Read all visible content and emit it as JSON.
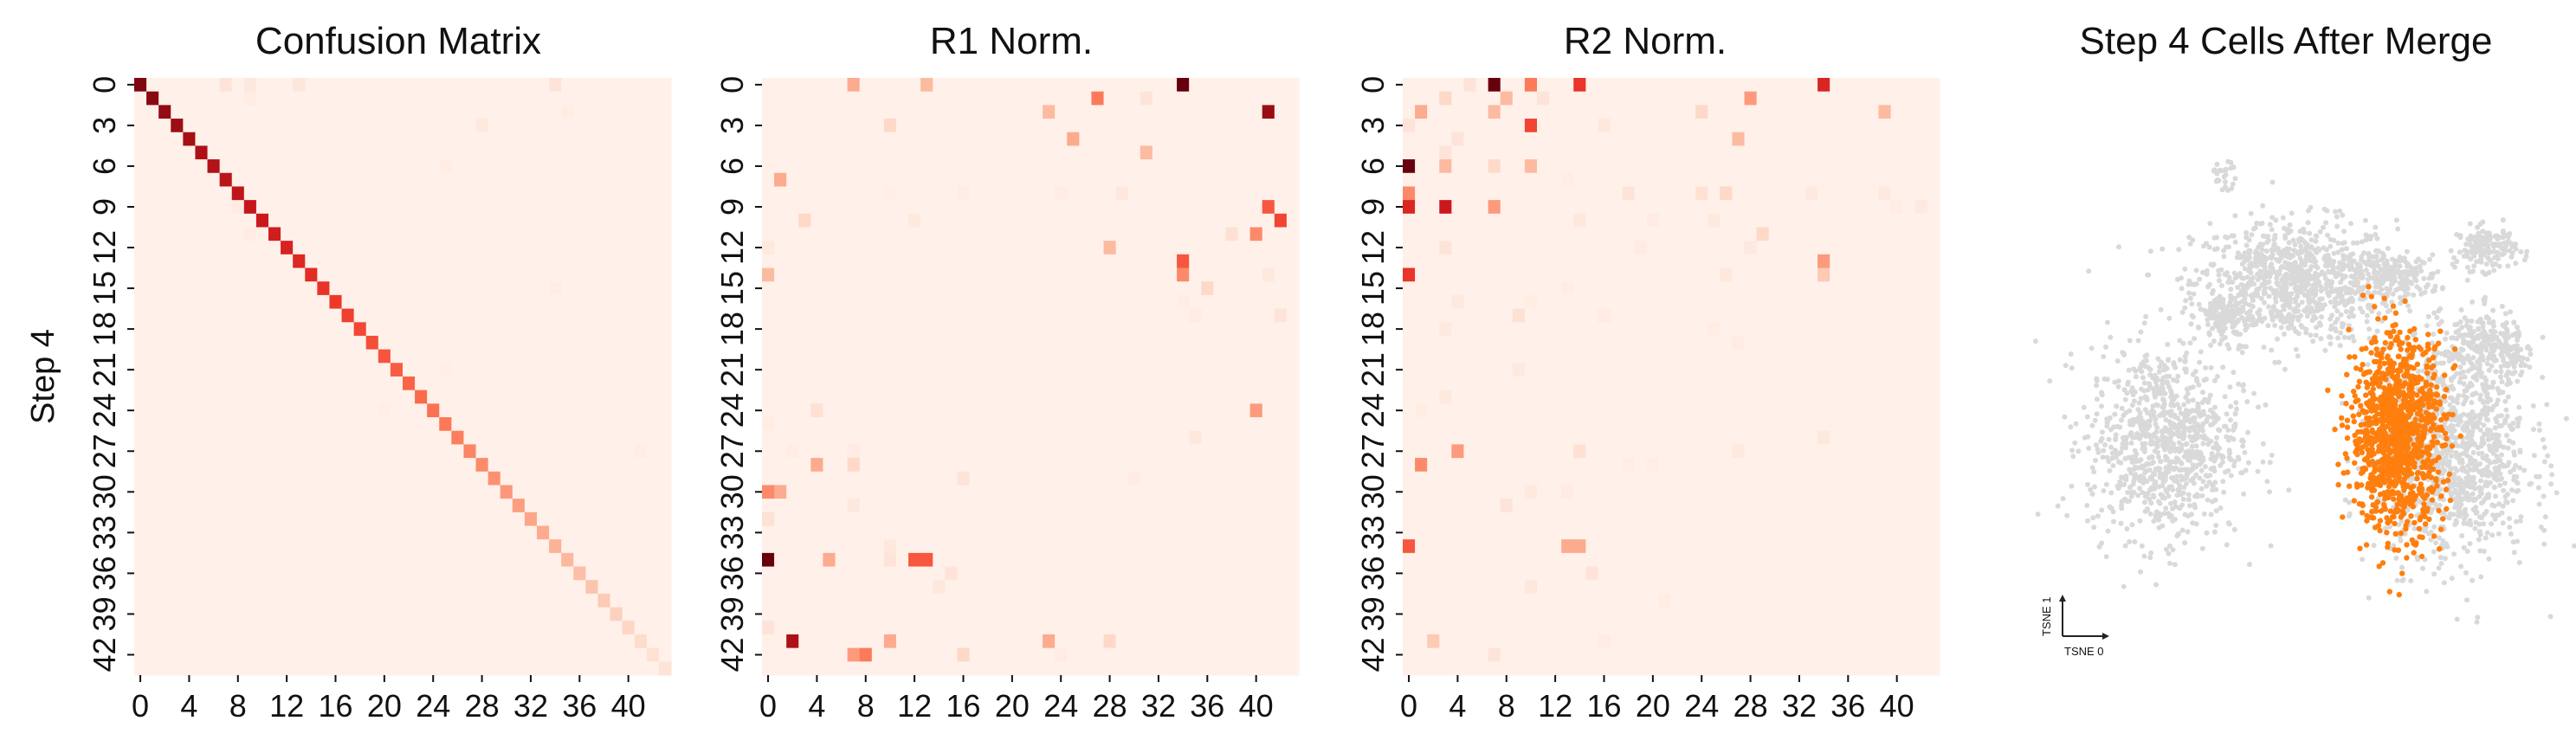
{
  "chart_data": [
    {
      "type": "heatmap",
      "title": "Confusion Matrix",
      "ylabel": "Step 4",
      "xlabel": "",
      "size": 44,
      "x_ticks": [
        "0",
        "4",
        "8",
        "12",
        "16",
        "20",
        "24",
        "28",
        "32",
        "36",
        "40"
      ],
      "y_ticks": [
        "0",
        "3",
        "6",
        "9",
        "12",
        "15",
        "18",
        "21",
        "24",
        "27",
        "30",
        "33",
        "36",
        "39",
        "42"
      ],
      "base_value": 0.03,
      "diagonal": {
        "start": 0.95,
        "end": 0.1
      },
      "cells": [
        [
          0,
          7,
          0.1
        ],
        [
          0,
          9,
          0.08
        ],
        [
          0,
          13,
          0.09
        ],
        [
          0,
          34,
          0.1
        ],
        [
          1,
          9,
          0.05
        ],
        [
          2,
          35,
          0.05
        ],
        [
          3,
          28,
          0.07
        ],
        [
          6,
          25,
          0.05
        ],
        [
          9,
          8,
          0.06
        ],
        [
          11,
          9,
          0.06
        ],
        [
          15,
          34,
          0.05
        ],
        [
          21,
          25,
          0.04
        ],
        [
          24,
          20,
          0.04
        ],
        [
          27,
          41,
          0.05
        ]
      ]
    },
    {
      "type": "heatmap",
      "title": "R1 Norm.",
      "size": 44,
      "x_ticks": [
        "0",
        "4",
        "8",
        "12",
        "16",
        "20",
        "24",
        "28",
        "32",
        "36",
        "40"
      ],
      "y_ticks": [
        "0",
        "3",
        "6",
        "9",
        "12",
        "15",
        "18",
        "21",
        "24",
        "27",
        "30",
        "33",
        "36",
        "39",
        "42"
      ],
      "base_value": 0.03,
      "cells": [
        [
          0,
          34,
          1.0
        ],
        [
          0,
          7,
          0.3
        ],
        [
          0,
          13,
          0.25
        ],
        [
          1,
          27,
          0.45
        ],
        [
          1,
          31,
          0.1
        ],
        [
          2,
          41,
          0.9
        ],
        [
          2,
          23,
          0.25
        ],
        [
          3,
          10,
          0.15
        ],
        [
          4,
          25,
          0.3
        ],
        [
          5,
          31,
          0.25
        ],
        [
          7,
          1,
          0.3
        ],
        [
          8,
          29,
          0.08
        ],
        [
          8,
          24,
          0.05
        ],
        [
          8,
          16,
          0.05
        ],
        [
          8,
          10,
          0.04
        ],
        [
          9,
          41,
          0.55
        ],
        [
          10,
          42,
          0.6
        ],
        [
          10,
          3,
          0.15
        ],
        [
          10,
          12,
          0.07
        ],
        [
          11,
          40,
          0.4
        ],
        [
          11,
          38,
          0.12
        ],
        [
          12,
          28,
          0.25
        ],
        [
          12,
          0,
          0.07
        ],
        [
          13,
          34,
          0.55
        ],
        [
          14,
          34,
          0.4
        ],
        [
          14,
          0,
          0.25
        ],
        [
          14,
          41,
          0.07
        ],
        [
          15,
          36,
          0.15
        ],
        [
          16,
          34,
          0.05
        ],
        [
          17,
          35,
          0.06
        ],
        [
          17,
          42,
          0.1
        ],
        [
          24,
          4,
          0.12
        ],
        [
          24,
          40,
          0.35
        ],
        [
          25,
          0,
          0.05
        ],
        [
          26,
          35,
          0.08
        ],
        [
          27,
          2,
          0.05
        ],
        [
          27,
          7,
          0.06
        ],
        [
          28,
          4,
          0.3
        ],
        [
          28,
          7,
          0.15
        ],
        [
          29,
          16,
          0.1
        ],
        [
          29,
          30,
          0.06
        ],
        [
          30,
          1,
          0.3
        ],
        [
          30,
          0,
          0.4
        ],
        [
          31,
          7,
          0.08
        ],
        [
          32,
          0,
          0.12
        ],
        [
          34,
          10,
          0.08
        ],
        [
          35,
          0,
          1.0
        ],
        [
          35,
          5,
          0.3
        ],
        [
          35,
          12,
          0.55
        ],
        [
          35,
          13,
          0.55
        ],
        [
          35,
          10,
          0.1
        ],
        [
          36,
          15,
          0.1
        ],
        [
          37,
          14,
          0.08
        ],
        [
          40,
          0,
          0.1
        ],
        [
          41,
          2,
          0.85
        ],
        [
          41,
          10,
          0.3
        ],
        [
          41,
          23,
          0.3
        ],
        [
          41,
          28,
          0.15
        ],
        [
          42,
          8,
          0.45
        ],
        [
          42,
          7,
          0.35
        ],
        [
          42,
          16,
          0.15
        ],
        [
          42,
          24,
          0.06
        ]
      ]
    },
    {
      "type": "heatmap",
      "title": "R2 Norm.",
      "size": 44,
      "x_ticks": [
        "0",
        "4",
        "8",
        "12",
        "16",
        "20",
        "24",
        "28",
        "32",
        "36",
        "40"
      ],
      "y_ticks": [
        "0",
        "3",
        "6",
        "9",
        "12",
        "15",
        "18",
        "21",
        "24",
        "27",
        "30",
        "33",
        "36",
        "39",
        "42"
      ],
      "base_value": 0.03,
      "cells": [
        [
          0,
          7,
          1.0
        ],
        [
          0,
          10,
          0.45
        ],
        [
          0,
          14,
          0.65
        ],
        [
          0,
          34,
          0.7
        ],
        [
          0,
          5,
          0.1
        ],
        [
          1,
          3,
          0.15
        ],
        [
          1,
          8,
          0.25
        ],
        [
          1,
          28,
          0.35
        ],
        [
          1,
          11,
          0.1
        ],
        [
          2,
          1,
          0.3
        ],
        [
          2,
          7,
          0.25
        ],
        [
          2,
          24,
          0.15
        ],
        [
          2,
          39,
          0.25
        ],
        [
          3,
          10,
          0.6
        ],
        [
          3,
          0,
          0.1
        ],
        [
          3,
          16,
          0.08
        ],
        [
          4,
          4,
          0.1
        ],
        [
          4,
          27,
          0.25
        ],
        [
          5,
          3,
          0.1
        ],
        [
          6,
          0,
          1.0
        ],
        [
          6,
          3,
          0.25
        ],
        [
          6,
          7,
          0.15
        ],
        [
          6,
          10,
          0.25
        ],
        [
          7,
          13,
          0.05
        ],
        [
          8,
          0,
          0.4
        ],
        [
          8,
          26,
          0.15
        ],
        [
          8,
          24,
          0.12
        ],
        [
          8,
          18,
          0.1
        ],
        [
          8,
          33,
          0.07
        ],
        [
          8,
          39,
          0.07
        ],
        [
          9,
          0,
          0.7
        ],
        [
          9,
          3,
          0.75
        ],
        [
          9,
          7,
          0.35
        ],
        [
          9,
          40,
          0.05
        ],
        [
          9,
          42,
          0.07
        ],
        [
          10,
          14,
          0.08
        ],
        [
          10,
          25,
          0.07
        ],
        [
          10,
          20,
          0.06
        ],
        [
          11,
          29,
          0.15
        ],
        [
          12,
          3,
          0.1
        ],
        [
          12,
          28,
          0.07
        ],
        [
          12,
          19,
          0.06
        ],
        [
          13,
          34,
          0.35
        ],
        [
          14,
          0,
          0.65
        ],
        [
          14,
          34,
          0.2
        ],
        [
          14,
          26,
          0.08
        ],
        [
          15,
          13,
          0.05
        ],
        [
          16,
          10,
          0.05
        ],
        [
          16,
          4,
          0.07
        ],
        [
          17,
          9,
          0.12
        ],
        [
          17,
          16,
          0.06
        ],
        [
          18,
          3,
          0.07
        ],
        [
          18,
          25,
          0.05
        ],
        [
          19,
          27,
          0.06
        ],
        [
          21,
          9,
          0.07
        ],
        [
          23,
          3,
          0.07
        ],
        [
          24,
          1,
          0.05
        ],
        [
          26,
          34,
          0.08
        ],
        [
          27,
          4,
          0.35
        ],
        [
          27,
          14,
          0.12
        ],
        [
          27,
          27,
          0.07
        ],
        [
          28,
          1,
          0.4
        ],
        [
          28,
          18,
          0.05
        ],
        [
          28,
          20,
          0.05
        ],
        [
          30,
          10,
          0.07
        ],
        [
          30,
          13,
          0.06
        ],
        [
          31,
          8,
          0.1
        ],
        [
          34,
          0,
          0.55
        ],
        [
          34,
          13,
          0.3
        ],
        [
          34,
          14,
          0.3
        ],
        [
          36,
          15,
          0.1
        ],
        [
          37,
          10,
          0.08
        ],
        [
          38,
          21,
          0.05
        ],
        [
          41,
          2,
          0.2
        ],
        [
          41,
          16,
          0.06
        ],
        [
          42,
          7,
          0.1
        ]
      ]
    },
    {
      "type": "scatter",
      "title": "Step 4 Cells After Merge",
      "xlabel": "TSNE 0",
      "ylabel": "TSNE 1",
      "xlim": [
        0,
        100
      ],
      "ylim": [
        0,
        100
      ],
      "series": [
        {
          "color": "#d9d9d9",
          "clusters": [
            {
              "cx": 50,
              "cy": 65,
              "rx": 24,
              "ry": 14,
              "n": 900
            },
            {
              "cx": 72,
              "cy": 66,
              "rx": 10,
              "ry": 5,
              "n": 180
            },
            {
              "cx": 91,
              "cy": 72,
              "rx": 7,
              "ry": 5,
              "n": 150
            },
            {
              "cx": 35,
              "cy": 58,
              "rx": 6,
              "ry": 6,
              "n": 120
            },
            {
              "cx": 22,
              "cy": 32,
              "rx": 18,
              "ry": 22,
              "n": 900
            },
            {
              "cx": 84,
              "cy": 30,
              "rx": 18,
              "ry": 25,
              "n": 1100
            },
            {
              "cx": 90,
              "cy": 52,
              "rx": 9,
              "ry": 8,
              "n": 200
            },
            {
              "cx": 97,
              "cy": 49,
              "rx": 3,
              "ry": 5,
              "n": 50
            },
            {
              "cx": 35,
              "cy": 87,
              "rx": 3,
              "ry": 3,
              "n": 25
            }
          ]
        },
        {
          "color": "#ff7f0e",
          "clusters": [
            {
              "cx": 72,
              "cy": 34,
              "rx": 11,
              "ry": 22,
              "n": 1100
            }
          ]
        }
      ]
    }
  ]
}
